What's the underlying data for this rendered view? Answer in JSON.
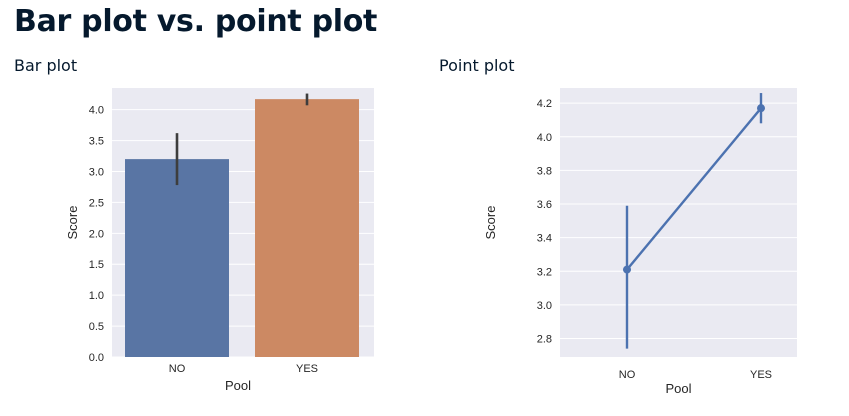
{
  "title": "Bar plot vs. point plot",
  "panels": {
    "bar": {
      "heading": "Bar plot"
    },
    "point": {
      "heading": "Point plot"
    }
  },
  "chart_data": [
    {
      "type": "bar",
      "categories": [
        "NO",
        "YES"
      ],
      "values": [
        3.2,
        4.17
      ],
      "ci_low": [
        2.78,
        4.07
      ],
      "ci_high": [
        3.62,
        4.26
      ],
      "colors": [
        "#5975a4",
        "#cc8963"
      ],
      "xlabel": "Pool",
      "ylabel": "Score",
      "ylim": [
        0,
        4.35
      ],
      "yticks": [
        "0.0",
        "0.5",
        "1.0",
        "1.5",
        "2.0",
        "2.5",
        "3.0",
        "3.5",
        "4.0"
      ],
      "grid": true,
      "background": "#eaeaf2"
    },
    {
      "type": "line",
      "categories": [
        "NO",
        "YES"
      ],
      "values": [
        3.21,
        4.17
      ],
      "ci_low": [
        2.74,
        4.08
      ],
      "ci_high": [
        3.59,
        4.26
      ],
      "color": "#4c72b0",
      "xlabel": "Pool",
      "ylabel": "Score",
      "ylim": [
        2.69,
        4.29
      ],
      "yticks": [
        "2.8",
        "3.0",
        "3.2",
        "3.4",
        "3.6",
        "3.8",
        "4.0",
        "4.2"
      ],
      "grid": true,
      "background": "#eaeaf2"
    }
  ]
}
